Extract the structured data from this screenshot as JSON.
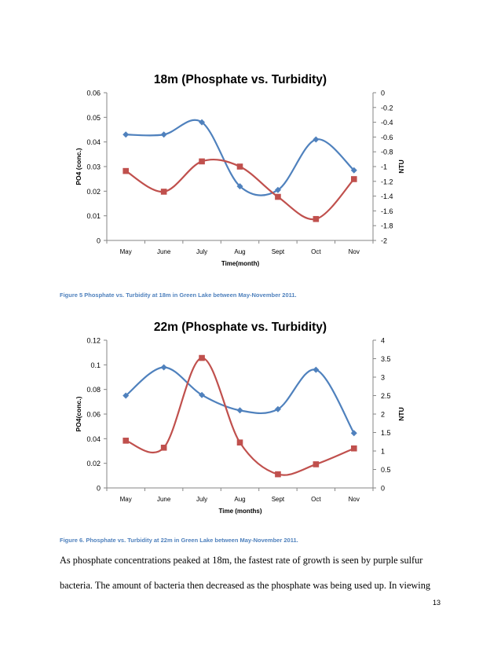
{
  "page": {
    "caption1": "Figure 5 Phosphate vs. Turbidity at 18m in Green Lake between May-November 2011.",
    "caption2": "Figure 6. Phosphate vs. Turbidity at 22m in Green Lake between May-November 2011.",
    "paragraph_line1": "As phosphate concentrations peaked at 18m, the fastest rate of growth is seen by purple sulfur",
    "paragraph_line2": "bacteria. The amount of bacteria then decreased as the phosphate was being used up.  In viewing",
    "page_number": "13"
  },
  "colors": {
    "phosphate": "#4f81bd",
    "turbidity": "#c0504d",
    "axis": "#868686",
    "text": "#000000"
  },
  "chart_data": [
    {
      "type": "line",
      "title": "18m (Phosphate vs. Turbidity)",
      "xlabel": "Time(month)",
      "ylabel": "PO4 (conc.)",
      "y2label": "NTU",
      "categories": [
        "May",
        "June",
        "July",
        "Aug",
        "Sept",
        "Oct",
        "Nov"
      ],
      "ylim": [
        0,
        0.06
      ],
      "yticks": [
        "0",
        "0.01",
        "0.02",
        "0.03",
        "0.04",
        "0.05",
        "0.06"
      ],
      "y2lim": [
        -2,
        0
      ],
      "y2ticks": [
        "-2",
        "-1.8",
        "-1.6",
        "-1.4",
        "-1.2",
        "-1",
        "-0.8",
        "-0.6",
        "-0.4",
        "-0.2",
        "0"
      ],
      "smooth": true,
      "grid": false,
      "series": [
        {
          "axis": "left",
          "marker": "diamond",
          "color": "#4f81bd",
          "values": [
            0.043,
            0.043,
            0.048,
            0.022,
            0.0205,
            0.041,
            0.0285
          ]
        },
        {
          "axis": "right",
          "marker": "square",
          "color": "#c0504d",
          "values": [
            -1.06,
            -1.34,
            -0.93,
            -1.0,
            -1.41,
            -1.71,
            -1.17
          ]
        }
      ]
    },
    {
      "type": "line",
      "title": "22m (Phosphate vs. Turbidity)",
      "xlabel": "Time (months)",
      "ylabel": "PO4(conc.)",
      "y2label": "NTU",
      "categories": [
        "May",
        "June",
        "July",
        "Aug",
        "Sept",
        "Oct",
        "Nov"
      ],
      "ylim": [
        0,
        0.12
      ],
      "yticks": [
        "0",
        "0.02",
        "0.04",
        "0.06",
        "0.08",
        "0.1",
        "0.12"
      ],
      "y2lim": [
        0,
        4
      ],
      "y2ticks": [
        "0",
        "0.5",
        "1",
        "1.5",
        "2",
        "2.5",
        "3",
        "3.5",
        "4"
      ],
      "smooth": true,
      "grid": false,
      "series": [
        {
          "axis": "left",
          "marker": "diamond",
          "color": "#4f81bd",
          "values": [
            0.075,
            0.098,
            0.0755,
            0.063,
            0.064,
            0.096,
            0.0445
          ]
        },
        {
          "axis": "right",
          "marker": "square",
          "color": "#c0504d",
          "values": [
            1.28,
            1.09,
            3.52,
            1.23,
            0.37,
            0.64,
            1.07
          ]
        }
      ]
    }
  ]
}
